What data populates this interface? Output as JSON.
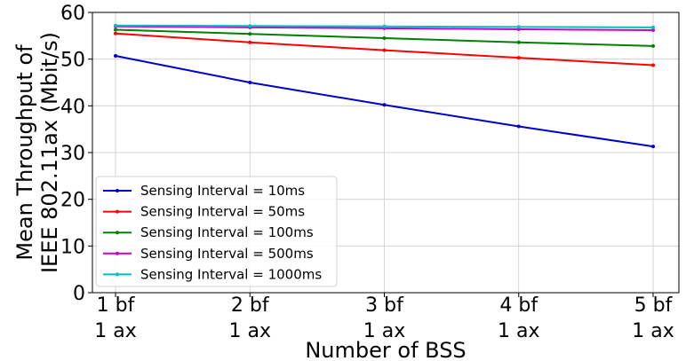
{
  "chart_data": {
    "type": "line",
    "categories": [
      [
        "1 bf",
        "1 ax"
      ],
      [
        "2 bf",
        "1 ax"
      ],
      [
        "3 bf",
        "1 ax"
      ],
      [
        "4 bf",
        "1 ax"
      ],
      [
        "5 bf",
        "1 ax"
      ]
    ],
    "xlabel": "Number of BSS",
    "ylabel_lines": [
      "Mean Throughput of",
      "IEEE 802.11ax (Mbit/s)"
    ],
    "ylim": [
      0,
      60
    ],
    "yticks": [
      0,
      10,
      20,
      30,
      40,
      50,
      60
    ],
    "grid": true,
    "legend_position": "lower-left",
    "series": [
      {
        "name": "Sensing Interval = 10ms",
        "color": "#0000cc",
        "values": [
          50.7,
          45.0,
          40.2,
          35.6,
          31.3
        ]
      },
      {
        "name": "Sensing Interval = 50ms",
        "color": "#ff0000",
        "values": [
          55.5,
          53.6,
          51.9,
          50.3,
          48.7
        ]
      },
      {
        "name": "Sensing Interval = 100ms",
        "color": "#008000",
        "values": [
          56.3,
          55.4,
          54.5,
          53.6,
          52.8
        ]
      },
      {
        "name": "Sensing Interval = 500ms",
        "color": "#cc00cc",
        "values": [
          57.0,
          56.8,
          56.6,
          56.4,
          56.2
        ]
      },
      {
        "name": "Sensing Interval = 1000ms",
        "color": "#00bfbf",
        "values": [
          57.2,
          57.1,
          57.0,
          56.9,
          56.8
        ]
      }
    ]
  }
}
